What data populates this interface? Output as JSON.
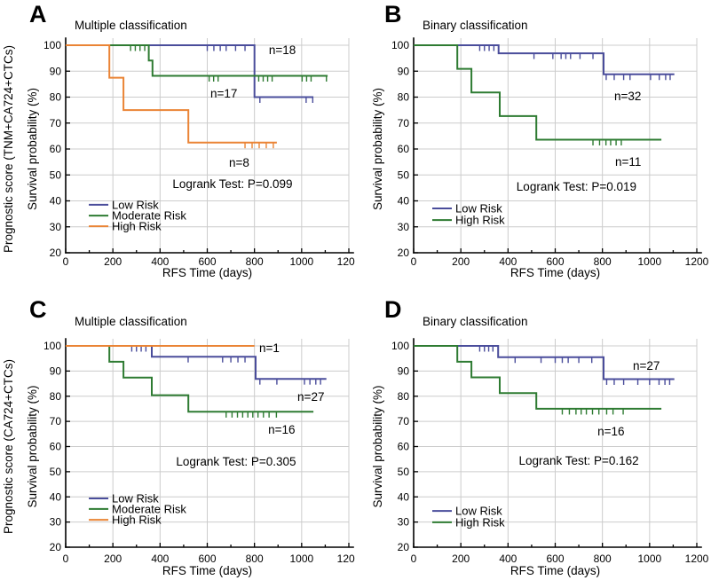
{
  "figure": {
    "background": "#ffffff",
    "text_color": "#000000",
    "axis_color": "#000000",
    "grid_color": "#cccccc",
    "panel_letters": [
      "A",
      "B",
      "C",
      "D"
    ]
  },
  "chart_data": [
    {
      "panel": "A",
      "type": "line",
      "style": "kaplan-meier-step",
      "title": "Multiple classification",
      "xlabel": "RFS Time (days)",
      "ylabel": "Survival probability (%)",
      "ylabel_outer": "Prognostic score (TNM+CA724+CTCs)",
      "xlim": [
        0,
        1200
      ],
      "ylim": [
        20,
        100
      ],
      "xticks": [
        0,
        200,
        400,
        600,
        800,
        1000,
        1200
      ],
      "xticks_minor": [
        100,
        300,
        500,
        700,
        900,
        1100
      ],
      "yticks": [
        20,
        30,
        40,
        50,
        60,
        70,
        80,
        90,
        100
      ],
      "grid": true,
      "annotation": {
        "text": "Logrank Test: P=0.099",
        "x": 707,
        "y": 45
      },
      "legend": {
        "x": 98,
        "entries": [
          {
            "label": "Low Risk",
            "color": "#4a4d9b",
            "y": 38.5
          },
          {
            "label": "Moderate Risk",
            "color": "#2e7b32",
            "y": 34.3
          },
          {
            "label": "High Risk",
            "color": "#ea8435",
            "y": 30.2
          }
        ]
      },
      "series": [
        {
          "name": "Low Risk",
          "color": "#4a4d9b",
          "n_label": "n=18",
          "n_x": 861,
          "n_y": 96.6,
          "steps": [
            [
              0,
              100
            ],
            [
              800,
              100
            ],
            [
              800,
              80
            ],
            [
              1050,
              80
            ]
          ],
          "censors": [
            [
              600,
              100
            ],
            [
              628,
              100
            ],
            [
              655,
              100
            ],
            [
              680,
              100
            ],
            [
              720,
              100
            ],
            [
              760,
              100
            ],
            [
              823,
              80
            ],
            [
              1019,
              80
            ],
            [
              1047,
              80
            ]
          ]
        },
        {
          "name": "Moderate Risk",
          "color": "#2e7b32",
          "n_label": "n=17",
          "n_x": 613,
          "n_y": 79.8,
          "steps": [
            [
              0,
              100
            ],
            [
              352,
              100
            ],
            [
              352,
              94.1
            ],
            [
              368,
              94.1
            ],
            [
              368,
              88.2
            ],
            [
              1110,
              88.2
            ]
          ],
          "censors": [
            [
              275,
              100
            ],
            [
              295,
              100
            ],
            [
              315,
              100
            ],
            [
              335,
              100
            ],
            [
              608,
              88.2
            ],
            [
              627,
              88.2
            ],
            [
              646,
              88.2
            ],
            [
              818,
              88.2
            ],
            [
              837,
              88.2
            ],
            [
              856,
              88.2
            ],
            [
              875,
              88.2
            ],
            [
              1002,
              88.2
            ],
            [
              1021,
              88.2
            ],
            [
              1040,
              88.2
            ],
            [
              1105,
              88.2
            ]
          ]
        },
        {
          "name": "High Risk",
          "color": "#ea8435",
          "n_label": "n=8",
          "n_x": 692,
          "n_y": 53.2,
          "steps": [
            [
              0,
              100
            ],
            [
              185,
              100
            ],
            [
              185,
              87.5
            ],
            [
              245,
              87.5
            ],
            [
              245,
              75
            ],
            [
              520,
              75
            ],
            [
              520,
              62.5
            ],
            [
              895,
              62.5
            ]
          ],
          "censors": [
            [
              760,
              62.5
            ],
            [
              790,
              62.5
            ],
            [
              820,
              62.5
            ],
            [
              850,
              62.5
            ],
            [
              880,
              62.5
            ]
          ]
        }
      ]
    },
    {
      "panel": "B",
      "type": "line",
      "style": "kaplan-meier-step",
      "title": "Binary classification",
      "xlabel": "RFS Time (days)",
      "ylabel": "Survival probability (%)",
      "ylabel_outer": null,
      "xlim": [
        0,
        1200
      ],
      "ylim": [
        20,
        100
      ],
      "xticks": [
        0,
        200,
        400,
        600,
        800,
        1000,
        1200
      ],
      "xticks_minor": [
        100,
        300,
        500,
        700,
        900,
        1100
      ],
      "yticks": [
        20,
        30,
        40,
        50,
        60,
        70,
        80,
        90,
        100
      ],
      "grid": true,
      "annotation": {
        "text": "Logrank Test: P=0.019",
        "x": 690,
        "y": 44
      },
      "legend": {
        "x": 79,
        "entries": [
          {
            "label": "Low Risk",
            "color": "#4a4d9b",
            "y": 37.1
          },
          {
            "label": "High Risk",
            "color": "#2e7b32",
            "y": 32.6
          }
        ]
      },
      "series": [
        {
          "name": "Low Risk",
          "color": "#4a4d9b",
          "n_label": "n=32",
          "n_x": 850,
          "n_y": 78.8,
          "steps": [
            [
              0,
              100
            ],
            [
              360,
              100
            ],
            [
              360,
              96.9
            ],
            [
              805,
              96.9
            ],
            [
              805,
              88.8
            ],
            [
              1105,
              88.8
            ]
          ],
          "censors": [
            [
              280,
              100
            ],
            [
              300,
              100
            ],
            [
              320,
              100
            ],
            [
              340,
              100
            ],
            [
              510,
              96.9
            ],
            [
              590,
              96.9
            ],
            [
              625,
              96.9
            ],
            [
              645,
              96.9
            ],
            [
              665,
              96.9
            ],
            [
              705,
              96.9
            ],
            [
              760,
              96.9
            ],
            [
              816,
              88.8
            ],
            [
              850,
              88.8
            ],
            [
              890,
              88.8
            ],
            [
              917,
              88.8
            ],
            [
              1004,
              88.8
            ],
            [
              1041,
              88.8
            ],
            [
              1068,
              88.8
            ],
            [
              1087,
              88.8
            ]
          ]
        },
        {
          "name": "High Risk",
          "color": "#2e7b32",
          "n_label": "n=11",
          "n_x": 854,
          "n_y": 53.5,
          "steps": [
            [
              0,
              100
            ],
            [
              185,
              100
            ],
            [
              185,
              90.9
            ],
            [
              245,
              90.9
            ],
            [
              245,
              81.8
            ],
            [
              365,
              81.8
            ],
            [
              365,
              72.7
            ],
            [
              520,
              72.7
            ],
            [
              520,
              63.6
            ],
            [
              1050,
              63.6
            ]
          ],
          "censors": [
            [
              760,
              63.6
            ],
            [
              788,
              63.6
            ],
            [
              815,
              63.6
            ],
            [
              835,
              63.6
            ],
            [
              858,
              63.6
            ],
            [
              880,
              63.6
            ]
          ]
        }
      ]
    },
    {
      "panel": "C",
      "type": "line",
      "style": "kaplan-meier-step",
      "title": "Multiple classification",
      "xlabel": "RFS Time (days)",
      "ylabel": "Survival probability (%)",
      "ylabel_outer": "Prognostic score (CA724+CTCs)",
      "xlim": [
        0,
        1200
      ],
      "ylim": [
        20,
        100
      ],
      "xticks": [
        0,
        200,
        400,
        600,
        800,
        1000,
        1200
      ],
      "xticks_minor": [
        100,
        300,
        500,
        700,
        900,
        1100
      ],
      "yticks": [
        20,
        30,
        40,
        50,
        60,
        70,
        80,
        90,
        100
      ],
      "grid": true,
      "annotation": {
        "text": "Logrank Test: P=0.305",
        "x": 722,
        "y": 52.5
      },
      "legend": {
        "x": 98,
        "entries": [
          {
            "label": "Low Risk",
            "color": "#4a4d9b",
            "y": 39.4
          },
          {
            "label": "Moderate Risk",
            "color": "#2e7b32",
            "y": 35.2
          },
          {
            "label": "High Risk",
            "color": "#ea8435",
            "y": 30.9
          }
        ]
      },
      "series": [
        {
          "name": "Low Risk",
          "color": "#4a4d9b",
          "n_label": "n=27",
          "n_x": 982,
          "n_y": 78.2,
          "steps": [
            [
              0,
              100
            ],
            [
              365,
              100
            ],
            [
              365,
              95.7
            ],
            [
              805,
              95.7
            ],
            [
              805,
              86.9
            ],
            [
              1105,
              86.9
            ]
          ],
          "censors": [
            [
              280,
              100
            ],
            [
              300,
              100
            ],
            [
              320,
              100
            ],
            [
              340,
              100
            ],
            [
              519,
              95.7
            ],
            [
              665,
              95.7
            ],
            [
              700,
              95.7
            ],
            [
              730,
              95.7
            ],
            [
              760,
              95.7
            ],
            [
              823,
              86.9
            ],
            [
              895,
              86.9
            ],
            [
              1012,
              86.9
            ],
            [
              1035,
              86.9
            ],
            [
              1060,
              86.9
            ],
            [
              1080,
              86.9
            ]
          ]
        },
        {
          "name": "Moderate Risk",
          "color": "#2e7b32",
          "n_label": "n=16",
          "n_x": 858,
          "n_y": 65.1,
          "steps": [
            [
              0,
              100
            ],
            [
              185,
              100
            ],
            [
              185,
              93.7
            ],
            [
              245,
              93.7
            ],
            [
              245,
              87.4
            ],
            [
              365,
              87.4
            ],
            [
              365,
              80.4
            ],
            [
              520,
              80.4
            ],
            [
              520,
              73.8
            ],
            [
              1050,
              73.8
            ]
          ],
          "censors": [
            [
              680,
              73.8
            ],
            [
              705,
              73.8
            ],
            [
              728,
              73.8
            ],
            [
              750,
              73.8
            ],
            [
              772,
              73.8
            ],
            [
              793,
              73.8
            ],
            [
              815,
              73.8
            ],
            [
              838,
              73.8
            ],
            [
              862,
              73.8
            ],
            [
              893,
              73.8
            ]
          ]
        },
        {
          "name": "High Risk",
          "color": "#ea8435",
          "n_label": "n=1",
          "n_x": 820,
          "n_y": 97.5,
          "steps": [
            [
              0,
              100
            ],
            [
              800,
              100
            ]
          ],
          "censors": []
        }
      ]
    },
    {
      "panel": "D",
      "type": "line",
      "style": "kaplan-meier-step",
      "title": "Binary classification",
      "xlabel": "RFS Time (days)",
      "ylabel": "Survival probability (%)",
      "ylabel_outer": null,
      "xlim": [
        0,
        1200
      ],
      "ylim": [
        20,
        100
      ],
      "xticks": [
        0,
        200,
        400,
        600,
        800,
        1000,
        1200
      ],
      "xticks_minor": [
        100,
        300,
        500,
        700,
        900,
        1100
      ],
      "yticks": [
        20,
        30,
        40,
        50,
        60,
        70,
        80,
        90,
        100
      ],
      "grid": true,
      "annotation": {
        "text": "Logrank Test: P=0.162",
        "x": 700,
        "y": 52.8
      },
      "legend": {
        "x": 79,
        "entries": [
          {
            "label": "Low Risk",
            "color": "#4a4d9b",
            "y": 34.4
          },
          {
            "label": "High Risk",
            "color": "#2e7b32",
            "y": 29.9
          }
        ]
      },
      "series": [
        {
          "name": "Low Risk",
          "color": "#4a4d9b",
          "n_label": "n=27",
          "n_x": 929,
          "n_y": 90.5,
          "steps": [
            [
              0,
              100
            ],
            [
              358,
              100
            ],
            [
              358,
              95.5
            ],
            [
              805,
              95.5
            ],
            [
              805,
              86.8
            ],
            [
              1105,
              86.8
            ]
          ],
          "censors": [
            [
              280,
              100
            ],
            [
              300,
              100
            ],
            [
              318,
              100
            ],
            [
              336,
              100
            ],
            [
              430,
              95.5
            ],
            [
              540,
              95.5
            ],
            [
              600,
              95.5
            ],
            [
              630,
              95.5
            ],
            [
              655,
              95.5
            ],
            [
              700,
              95.5
            ],
            [
              755,
              95.5
            ],
            [
              818,
              86.8
            ],
            [
              850,
              86.8
            ],
            [
              890,
              86.8
            ],
            [
              950,
              86.8
            ],
            [
              1000,
              86.8
            ],
            [
              1040,
              86.8
            ],
            [
              1065,
              86.8
            ],
            [
              1085,
              86.8
            ]
          ]
        },
        {
          "name": "High Risk",
          "color": "#2e7b32",
          "n_label": "n=16",
          "n_x": 779,
          "n_y": 64.4,
          "steps": [
            [
              0,
              100
            ],
            [
              185,
              100
            ],
            [
              185,
              93.7
            ],
            [
              245,
              93.7
            ],
            [
              245,
              87.5
            ],
            [
              365,
              87.5
            ],
            [
              365,
              81.2
            ],
            [
              520,
              81.2
            ],
            [
              520,
              75
            ],
            [
              1050,
              75
            ]
          ],
          "censors": [
            [
              630,
              75
            ],
            [
              660,
              75
            ],
            [
              688,
              75
            ],
            [
              710,
              75
            ],
            [
              732,
              75
            ],
            [
              758,
              75
            ],
            [
              785,
              75
            ],
            [
              818,
              75
            ],
            [
              845,
              75
            ],
            [
              888,
              75
            ]
          ]
        }
      ]
    }
  ]
}
